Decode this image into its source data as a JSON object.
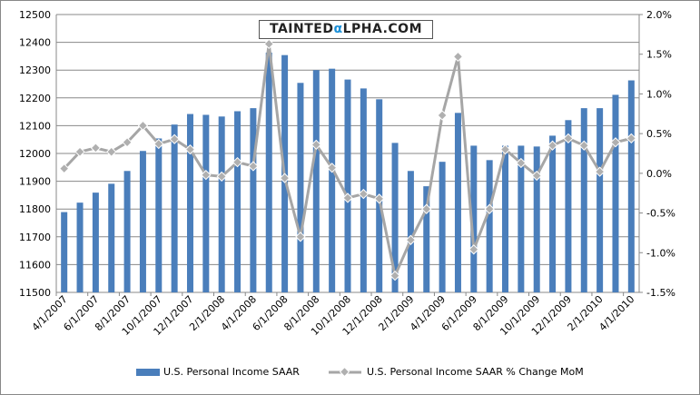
{
  "chart_data": {
    "type": "bar+line",
    "logo": "TAINTEDALPHA.COM",
    "categories": [
      "4/1/2007",
      "5/1/2007",
      "6/1/2007",
      "7/1/2007",
      "8/1/2007",
      "9/1/2007",
      "10/1/2007",
      "11/1/2007",
      "12/1/2007",
      "1/1/2008",
      "2/1/2008",
      "3/1/2008",
      "4/1/2008",
      "5/1/2008",
      "6/1/2008",
      "7/1/2008",
      "8/1/2008",
      "9/1/2008",
      "10/1/2008",
      "11/1/2008",
      "12/1/2008",
      "1/1/2009",
      "2/1/2009",
      "3/1/2009",
      "4/1/2009",
      "5/1/2009",
      "6/1/2009",
      "7/1/2009",
      "8/1/2009",
      "9/1/2009",
      "10/1/2009",
      "11/1/2009",
      "12/1/2009",
      "1/1/2010",
      "2/1/2010",
      "3/1/2010",
      "4/1/2010"
    ],
    "x_tick_labels": [
      "4/1/2007",
      "6/1/2007",
      "8/1/2007",
      "10/1/2007",
      "12/1/2007",
      "2/1/2008",
      "4/1/2008",
      "6/1/2008",
      "8/1/2008",
      "10/1/2008",
      "12/1/2008",
      "2/1/2009",
      "4/1/2009",
      "6/1/2009",
      "8/1/2009",
      "10/1/2009",
      "12/1/2009",
      "2/1/2010",
      "4/1/2010"
    ],
    "series": [
      {
        "name": "U.S. Personal Income SAAR",
        "type": "bar",
        "axis": "left",
        "color": "#4a7ebb",
        "values": [
          11789,
          11823,
          11859,
          11891,
          11937,
          12009,
          12054,
          12104,
          12142,
          12139,
          12133,
          12152,
          12163,
          12363,
          12354,
          12254,
          12300,
          12305,
          12266,
          12234,
          12195,
          12038,
          11937,
          11882,
          11970,
          12146,
          12028,
          11976,
          12028,
          12028,
          12025,
          12064,
          12120,
          12163,
          12163,
          12211,
          12263
        ]
      },
      {
        "name": "U.S. Personal Income SAAR % Change MoM",
        "type": "line",
        "axis": "right",
        "color": "#a6a6a6",
        "values": [
          0.06,
          0.27,
          0.32,
          0.27,
          0.39,
          0.6,
          0.37,
          0.43,
          0.3,
          -0.02,
          -0.04,
          0.14,
          0.09,
          1.63,
          -0.06,
          -0.8,
          0.36,
          0.07,
          -0.31,
          -0.26,
          -0.32,
          -1.29,
          -0.84,
          -0.45,
          0.73,
          1.47,
          -0.96,
          -0.45,
          0.3,
          0.13,
          -0.03,
          0.35,
          0.44,
          0.35,
          0.02,
          0.39,
          0.44
        ]
      }
    ],
    "ylim": [
      11500,
      12500
    ],
    "y_ticks": [
      "11500",
      "11600",
      "11700",
      "11800",
      "11900",
      "12000",
      "12100",
      "12200",
      "12300",
      "12400",
      "12500"
    ],
    "y2lim": [
      -1.5,
      2.0
    ],
    "y2_ticks": [
      "-1.5%",
      "-1.0%",
      "-0.5%",
      "0.0%",
      "0.5%",
      "1.0%",
      "1.5%",
      "2.0%"
    ],
    "grid": true,
    "legend_position": "bottom"
  }
}
